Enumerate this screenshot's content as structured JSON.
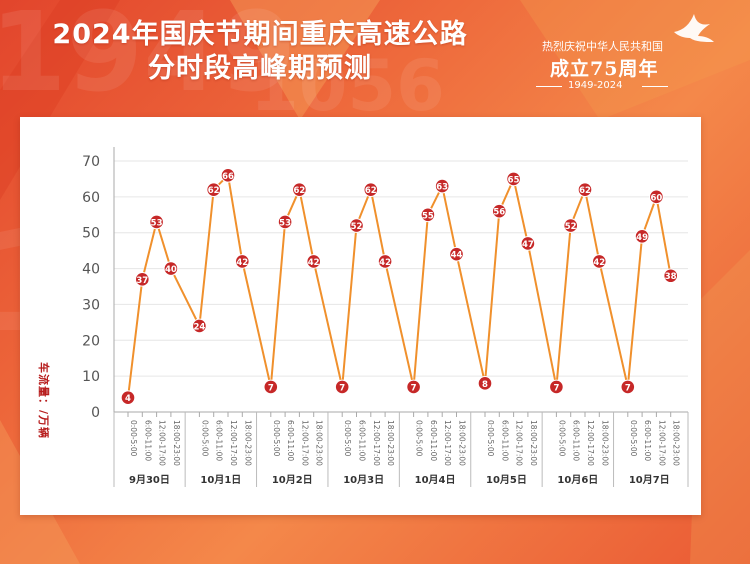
{
  "header": {
    "title_line1": "2024年国庆节期间重庆高速公路",
    "title_line2": "分时段高峰期预测"
  },
  "badge": {
    "top_text": "热烈庆祝中华人民共和国",
    "main_text": "成立75周年",
    "years": "1949-2024",
    "icon": "dove-icon"
  },
  "colors": {
    "line": "#f0902c",
    "marker": "#c62828",
    "axis_label": "#b71c1c",
    "grid": "#e6e6e6"
  },
  "chart_data": {
    "type": "line",
    "title": "",
    "ylabel": "车流量：/万辆",
    "xlabel": "",
    "ylim": [
      0,
      70
    ],
    "yticks": [
      0,
      10,
      20,
      30,
      40,
      50,
      60,
      70
    ],
    "grid": true,
    "time_slots": [
      "0:00-5:00",
      "6:00-11:00",
      "12:00-17:00",
      "18:00-23:00"
    ],
    "groups": [
      "9月30日",
      "10月1日",
      "10月2日",
      "10月3日",
      "10月4日",
      "10月5日",
      "10月6日",
      "10月7日"
    ],
    "values": [
      4,
      37,
      53,
      40,
      24,
      62,
      66,
      42,
      7,
      53,
      62,
      42,
      7,
      52,
      62,
      42,
      7,
      55,
      63,
      44,
      8,
      56,
      65,
      47,
      7,
      52,
      62,
      42,
      7,
      49,
      60,
      38
    ]
  }
}
